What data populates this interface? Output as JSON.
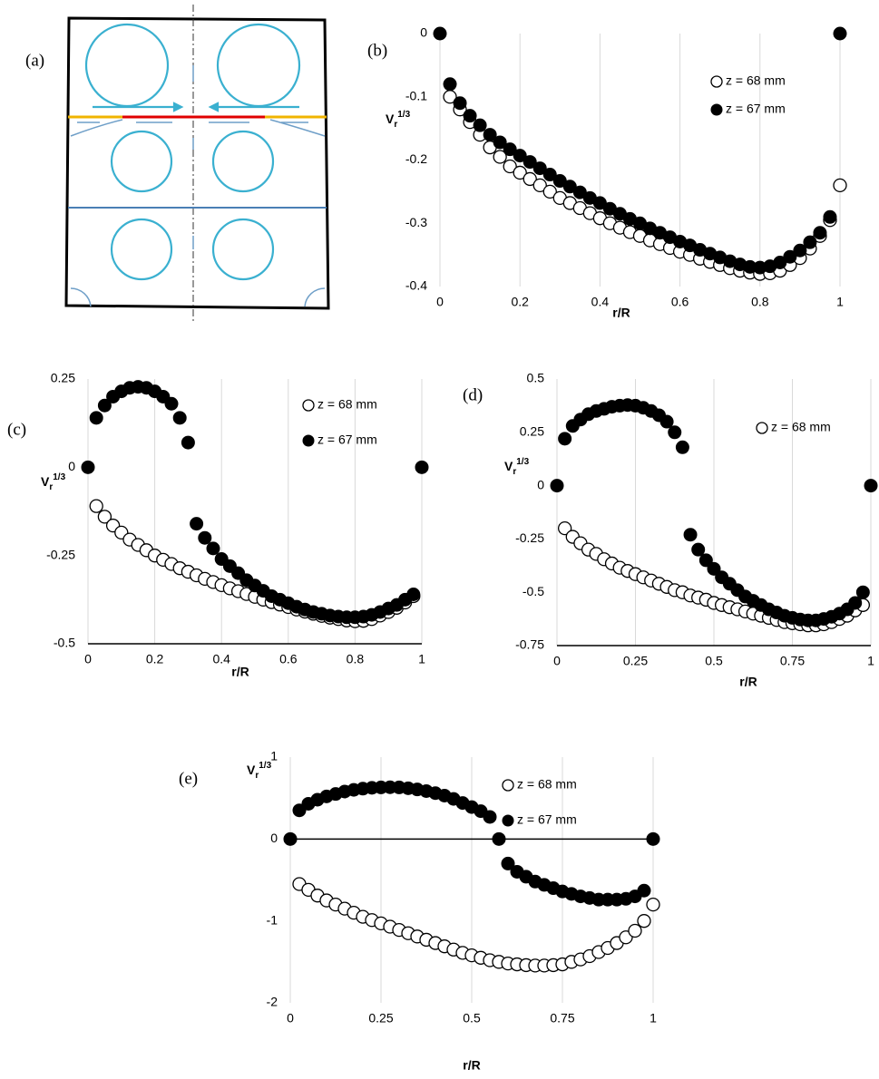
{
  "panel_a": {
    "label": "(a)"
  },
  "chart_data": [
    {
      "type": "scatter",
      "panel": "(b)",
      "xlabel": "r/R",
      "ylabel": {
        "base": "V",
        "sub": "r",
        "sup": "1/3"
      },
      "x": [
        0,
        0.025,
        0.05,
        0.075,
        0.1,
        0.125,
        0.15,
        0.175,
        0.2,
        0.225,
        0.25,
        0.275,
        0.3,
        0.325,
        0.35,
        0.375,
        0.4,
        0.425,
        0.45,
        0.475,
        0.5,
        0.525,
        0.55,
        0.575,
        0.6,
        0.625,
        0.65,
        0.675,
        0.7,
        0.725,
        0.75,
        0.775,
        0.8,
        0.825,
        0.85,
        0.875,
        0.9,
        0.925,
        0.95,
        0.975,
        1
      ],
      "xlim": [
        0,
        1
      ],
      "xticks": [
        0,
        0.2,
        0.4,
        0.6,
        0.8,
        1
      ],
      "ylim": [
        -0.4,
        0
      ],
      "yticks": [
        0,
        -0.1,
        -0.2,
        -0.3,
        -0.4
      ],
      "grid": true,
      "x_axis": "none",
      "series": [
        {
          "name": "z = 68 mm",
          "marker": "open",
          "color": "#000000",
          "values": [
            null,
            -0.1,
            -0.12,
            -0.14,
            -0.16,
            -0.18,
            -0.195,
            -0.21,
            -0.22,
            -0.23,
            -0.24,
            -0.25,
            -0.26,
            -0.268,
            -0.276,
            -0.284,
            -0.292,
            -0.3,
            -0.307,
            -0.314,
            -0.32,
            -0.327,
            -0.333,
            -0.339,
            -0.345,
            -0.35,
            -0.356,
            -0.361,
            -0.366,
            -0.371,
            -0.375,
            -0.378,
            -0.38,
            -0.379,
            -0.375,
            -0.366,
            -0.355,
            -0.34,
            -0.32,
            -0.295,
            -0.24
          ]
        },
        {
          "name": "z = 67 mm",
          "marker": "filled",
          "color": "#000000",
          "values": [
            0,
            -0.08,
            -0.11,
            -0.13,
            -0.145,
            -0.16,
            -0.172,
            -0.183,
            -0.193,
            -0.203,
            -0.213,
            -0.223,
            -0.233,
            -0.242,
            -0.251,
            -0.26,
            -0.268,
            -0.277,
            -0.285,
            -0.293,
            -0.3,
            -0.308,
            -0.315,
            -0.322,
            -0.329,
            -0.335,
            -0.342,
            -0.348,
            -0.354,
            -0.36,
            -0.365,
            -0.369,
            -0.37,
            -0.368,
            -0.362,
            -0.353,
            -0.343,
            -0.33,
            -0.315,
            -0.29,
            0
          ]
        }
      ]
    },
    {
      "type": "scatter",
      "panel": "(c)",
      "xlabel": "r/R",
      "ylabel": {
        "base": "V",
        "sub": "r",
        "sup": "1/3"
      },
      "x": [
        0,
        0.025,
        0.05,
        0.075,
        0.1,
        0.125,
        0.15,
        0.175,
        0.2,
        0.225,
        0.25,
        0.275,
        0.3,
        0.325,
        0.35,
        0.375,
        0.4,
        0.425,
        0.45,
        0.475,
        0.5,
        0.525,
        0.55,
        0.575,
        0.6,
        0.625,
        0.65,
        0.675,
        0.7,
        0.725,
        0.75,
        0.775,
        0.8,
        0.825,
        0.85,
        0.875,
        0.9,
        0.925,
        0.95,
        0.975,
        1
      ],
      "xlim": [
        0,
        1
      ],
      "xticks": [
        0,
        0.2,
        0.4,
        0.6,
        0.8,
        1
      ],
      "ylim": [
        -0.5,
        0.25
      ],
      "yticks": [
        0.25,
        0,
        -0.25,
        -0.5
      ],
      "grid": true,
      "x_axis": "bottom",
      "series": [
        {
          "name": "z = 68 mm",
          "marker": "open",
          "color": "#000000",
          "values": [
            null,
            -0.11,
            -0.14,
            -0.165,
            -0.185,
            -0.205,
            -0.22,
            -0.235,
            -0.25,
            -0.262,
            -0.274,
            -0.286,
            -0.296,
            -0.306,
            -0.316,
            -0.325,
            -0.334,
            -0.343,
            -0.351,
            -0.359,
            -0.367,
            -0.375,
            -0.382,
            -0.389,
            -0.396,
            -0.403,
            -0.409,
            -0.415,
            -0.421,
            -0.426,
            -0.43,
            -0.434,
            -0.436,
            -0.435,
            -0.43,
            -0.42,
            -0.41,
            -0.398,
            -0.383,
            -0.365,
            null
          ]
        },
        {
          "name": "z = 67 mm",
          "marker": "filled",
          "color": "#000000",
          "values": [
            0,
            0.14,
            0.175,
            0.2,
            0.215,
            0.225,
            0.228,
            0.225,
            0.215,
            0.2,
            0.18,
            0.14,
            0.07,
            -0.16,
            -0.2,
            -0.23,
            -0.26,
            -0.28,
            -0.3,
            -0.32,
            -0.335,
            -0.35,
            -0.365,
            -0.375,
            -0.385,
            -0.395,
            -0.403,
            -0.41,
            -0.415,
            -0.42,
            -0.423,
            -0.425,
            -0.425,
            -0.423,
            -0.418,
            -0.41,
            -0.4,
            -0.39,
            -0.375,
            -0.36,
            0
          ]
        }
      ]
    },
    {
      "type": "scatter",
      "panel": "(d)",
      "xlabel": "r/R",
      "ylabel": {
        "base": "V",
        "sub": "r",
        "sup": "1/3"
      },
      "x": [
        0,
        0.025,
        0.05,
        0.075,
        0.1,
        0.125,
        0.15,
        0.175,
        0.2,
        0.225,
        0.25,
        0.275,
        0.3,
        0.325,
        0.35,
        0.375,
        0.4,
        0.425,
        0.45,
        0.475,
        0.5,
        0.525,
        0.55,
        0.575,
        0.6,
        0.625,
        0.65,
        0.675,
        0.7,
        0.725,
        0.75,
        0.775,
        0.8,
        0.825,
        0.85,
        0.875,
        0.9,
        0.925,
        0.95,
        0.975,
        1
      ],
      "xlim": [
        0,
        1
      ],
      "xticks": [
        0,
        0.25,
        0.5,
        0.75,
        1
      ],
      "ylim": [
        -0.75,
        0.5
      ],
      "yticks": [
        0.5,
        0.25,
        0,
        -0.25,
        -0.5,
        -0.75
      ],
      "grid": true,
      "x_axis": "bottom",
      "series": [
        {
          "name": "z = 68 mm",
          "marker": "open",
          "color": "#000000",
          "values": [
            null,
            -0.2,
            -0.24,
            -0.27,
            -0.3,
            -0.32,
            -0.345,
            -0.365,
            -0.385,
            -0.4,
            -0.415,
            -0.43,
            -0.445,
            -0.46,
            -0.475,
            -0.49,
            -0.5,
            -0.515,
            -0.525,
            -0.535,
            -0.55,
            -0.56,
            -0.57,
            -0.58,
            -0.59,
            -0.6,
            -0.61,
            -0.62,
            -0.63,
            -0.64,
            -0.645,
            -0.65,
            -0.655,
            -0.655,
            -0.65,
            -0.64,
            -0.625,
            -0.61,
            -0.585,
            -0.56,
            null
          ]
        },
        {
          "marker": "filled",
          "color": "#000000",
          "values": [
            0,
            0.22,
            0.28,
            0.31,
            0.335,
            0.35,
            0.36,
            0.37,
            0.375,
            0.378,
            0.375,
            0.365,
            0.35,
            0.33,
            0.3,
            0.25,
            0.18,
            -0.23,
            -0.3,
            -0.35,
            -0.39,
            -0.43,
            -0.46,
            -0.49,
            -0.52,
            -0.54,
            -0.56,
            -0.58,
            -0.595,
            -0.61,
            -0.62,
            -0.628,
            -0.632,
            -0.632,
            -0.625,
            -0.615,
            -0.6,
            -0.58,
            -0.55,
            -0.5,
            0
          ]
        }
      ]
    },
    {
      "type": "scatter",
      "panel": "(e)",
      "xlabel": "r/R",
      "ylabel": {
        "base": "V",
        "sub": "r",
        "sup": "1/3"
      },
      "x": [
        0,
        0.025,
        0.05,
        0.075,
        0.1,
        0.125,
        0.15,
        0.175,
        0.2,
        0.225,
        0.25,
        0.275,
        0.3,
        0.325,
        0.35,
        0.375,
        0.4,
        0.425,
        0.45,
        0.475,
        0.5,
        0.525,
        0.55,
        0.575,
        0.6,
        0.625,
        0.65,
        0.675,
        0.7,
        0.725,
        0.75,
        0.775,
        0.8,
        0.825,
        0.85,
        0.875,
        0.9,
        0.925,
        0.95,
        0.975,
        1
      ],
      "xlim": [
        0,
        1
      ],
      "xticks": [
        0,
        0.25,
        0.5,
        0.75,
        1
      ],
      "ylim": [
        -2,
        1
      ],
      "yticks": [
        1,
        0,
        -1,
        -2
      ],
      "grid": true,
      "x_axis": "zero",
      "series": [
        {
          "name": "z = 68 mm",
          "marker": "open",
          "color": "#000000",
          "values": [
            null,
            -0.55,
            -0.62,
            -0.69,
            -0.75,
            -0.8,
            -0.85,
            -0.9,
            -0.95,
            -0.99,
            -1.03,
            -1.07,
            -1.11,
            -1.15,
            -1.19,
            -1.23,
            -1.27,
            -1.31,
            -1.35,
            -1.39,
            -1.42,
            -1.45,
            -1.48,
            -1.5,
            -1.52,
            -1.53,
            -1.54,
            -1.545,
            -1.545,
            -1.54,
            -1.53,
            -1.5,
            -1.47,
            -1.43,
            -1.38,
            -1.33,
            -1.27,
            -1.2,
            -1.12,
            -1.0,
            -0.8
          ]
        },
        {
          "name": "z = 67 mm",
          "marker": "filled",
          "color": "#000000",
          "values": [
            0,
            0.35,
            0.43,
            0.48,
            0.52,
            0.55,
            0.58,
            0.6,
            0.615,
            0.625,
            0.63,
            0.632,
            0.63,
            0.62,
            0.605,
            0.585,
            0.56,
            0.53,
            0.49,
            0.44,
            0.39,
            0.34,
            0.27,
            0,
            -0.3,
            -0.4,
            -0.46,
            -0.52,
            -0.56,
            -0.6,
            -0.64,
            -0.67,
            -0.7,
            -0.72,
            -0.74,
            -0.74,
            -0.74,
            -0.73,
            -0.7,
            -0.63,
            0
          ]
        }
      ]
    }
  ]
}
